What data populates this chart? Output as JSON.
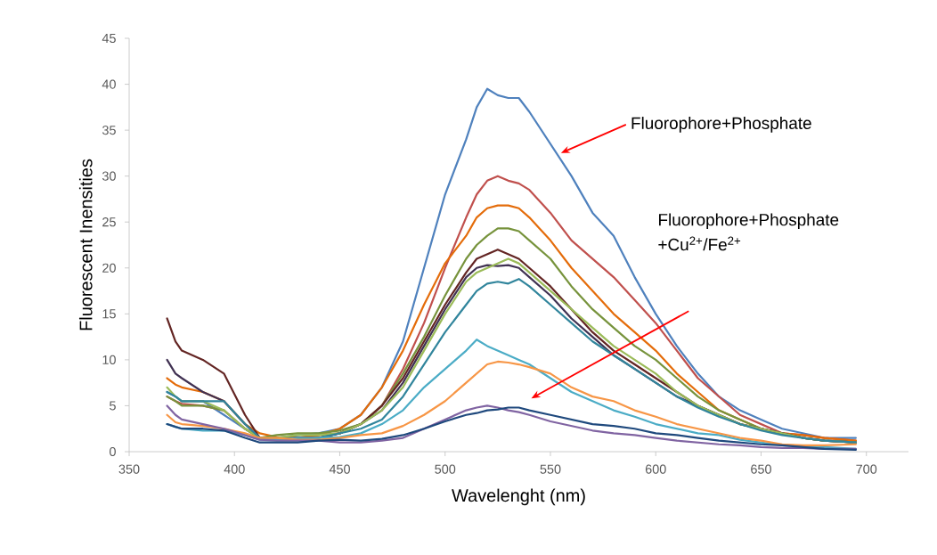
{
  "chart_data": {
    "type": "line",
    "xlabel": "Wavelenght (nm)",
    "ylabel": "Fluorescent Inensities",
    "xlim": [
      350,
      720
    ],
    "xticks": [
      350,
      400,
      450,
      500,
      550,
      600,
      650,
      700
    ],
    "ylim": [
      0,
      45
    ],
    "yticks": [
      0,
      5,
      10,
      15,
      20,
      25,
      30,
      35,
      40,
      45
    ],
    "grid": false,
    "marker": "none",
    "line_style": "solid",
    "x": [
      368,
      372,
      375,
      385,
      395,
      405,
      412,
      420,
      430,
      440,
      450,
      460,
      470,
      480,
      490,
      500,
      510,
      515,
      520,
      525,
      530,
      535,
      540,
      550,
      560,
      570,
      580,
      590,
      600,
      610,
      620,
      630,
      640,
      650,
      660,
      670,
      680,
      695
    ],
    "series": [
      {
        "color": "#4f81bd",
        "values": [
          6.5,
          6,
          5.5,
          5.5,
          4,
          2.5,
          1.5,
          1.5,
          1.8,
          2,
          2.5,
          4,
          7,
          12,
          20,
          28,
          34,
          37.5,
          39.5,
          38.8,
          38.5,
          38.5,
          37,
          33.5,
          30,
          26,
          23.5,
          19,
          15,
          11.5,
          8.5,
          6,
          4.5,
          3.5,
          2.5,
          2,
          1.5,
          1.5
        ]
      },
      {
        "color": "#c0504d",
        "values": [
          6,
          5.5,
          5.2,
          5,
          4.5,
          2.5,
          1.5,
          1.3,
          1.5,
          1.8,
          2,
          3,
          5,
          9,
          14,
          20,
          25.5,
          28,
          29.5,
          30,
          29.5,
          29.2,
          28.5,
          26,
          23,
          21,
          19,
          16.5,
          14,
          11,
          8,
          6,
          4,
          3,
          2,
          1.8,
          1.5,
          1.2
        ]
      },
      {
        "color": "#e46c0a",
        "values": [
          8,
          7.3,
          7,
          6.5,
          5.5,
          3,
          2,
          1.6,
          1.5,
          1.8,
          2.5,
          4,
          7,
          11,
          16,
          20.5,
          23.5,
          25.5,
          26.5,
          26.8,
          26.8,
          26.5,
          25.5,
          23,
          20,
          17.5,
          15,
          13,
          11,
          8.5,
          6.5,
          4.5,
          3.5,
          2.5,
          2,
          1.8,
          1.5,
          1.2
        ]
      },
      {
        "color": "#77933c",
        "values": [
          6,
          5.5,
          5,
          5,
          4.5,
          2.5,
          1.5,
          1.8,
          2,
          2,
          2.3,
          3,
          5,
          8.5,
          12.5,
          17,
          21,
          22.5,
          23.5,
          24.3,
          24.3,
          24,
          23,
          21,
          18,
          15.5,
          13.5,
          11.5,
          10,
          8,
          6,
          4.5,
          3.5,
          2.5,
          2,
          1.5,
          1.2,
          1
        ]
      },
      {
        "color": "#632523",
        "values": [
          14.5,
          12,
          11,
          10,
          8.5,
          4,
          1.5,
          1.5,
          1.5,
          1.5,
          2,
          3,
          5,
          8,
          12,
          16,
          19.5,
          21,
          21.5,
          22,
          21.5,
          21,
          20,
          18,
          15.5,
          13,
          11,
          9.5,
          8,
          6.5,
          5,
          4,
          3,
          2.5,
          2,
          1.5,
          1.2,
          1
        ]
      },
      {
        "color": "#403152",
        "values": [
          10,
          8.5,
          8,
          6.5,
          5.5,
          3,
          1.5,
          1.3,
          1.5,
          1.5,
          2,
          3,
          4.5,
          7.5,
          11.5,
          15.5,
          19,
          20,
          20.3,
          20.2,
          20.3,
          20,
          19,
          17,
          14.5,
          12.5,
          10.5,
          9,
          7.5,
          6,
          5,
          4,
          3,
          2.5,
          2,
          1.5,
          1.2,
          1
        ]
      },
      {
        "color": "#9bbb59",
        "values": [
          7,
          6,
          5.5,
          5.5,
          4.5,
          2.5,
          1.5,
          1.5,
          1.8,
          1.8,
          2,
          3,
          4.5,
          7,
          11,
          15,
          18.5,
          19.5,
          20,
          20.5,
          21,
          20.5,
          19.5,
          17.5,
          15.5,
          13.5,
          11.5,
          10,
          8.5,
          6.5,
          5,
          4,
          3,
          2.5,
          2,
          1.5,
          1.2,
          1
        ]
      },
      {
        "color": "#31859c",
        "values": [
          6.5,
          6,
          5.5,
          5.5,
          5.5,
          3,
          1.5,
          1.3,
          1.3,
          1.5,
          2,
          2.5,
          3.5,
          6,
          9.5,
          13,
          16,
          17.5,
          18.3,
          18.5,
          18.3,
          18.8,
          18,
          16,
          14,
          12,
          10.5,
          9,
          7.5,
          6,
          4.8,
          3.8,
          3,
          2.3,
          1.8,
          1.5,
          1.2,
          1
        ]
      },
      {
        "color": "#4bacc6",
        "values": [
          3,
          2.7,
          2.5,
          2.3,
          2.3,
          1.8,
          1.3,
          1.3,
          1.5,
          1.5,
          1.6,
          2,
          3,
          4.5,
          7,
          9,
          11,
          12.2,
          11.5,
          11,
          10.5,
          10,
          9.5,
          8,
          6.5,
          5.5,
          4.5,
          3.8,
          3,
          2.5,
          2,
          1.8,
          1.3,
          1,
          0.7,
          0.6,
          0.5,
          0.3
        ]
      },
      {
        "color": "#f79646",
        "values": [
          4,
          3.2,
          3,
          2.8,
          2.5,
          2,
          1.5,
          1.5,
          1.3,
          1.3,
          1.5,
          1.8,
          2,
          2.8,
          4,
          5.5,
          7.5,
          8.5,
          9.5,
          9.8,
          9.7,
          9.5,
          9.2,
          8.5,
          7,
          6,
          5.5,
          4.5,
          3.8,
          3,
          2.5,
          2,
          1.5,
          1.2,
          0.8,
          0.7,
          0.7,
          0.8
        ]
      },
      {
        "color": "#8064a2",
        "values": [
          5,
          4,
          3.5,
          3,
          2.5,
          1.8,
          1.3,
          1.2,
          1.2,
          1.2,
          1,
          1,
          1.2,
          1.5,
          2.5,
          3.5,
          4.5,
          4.8,
          5,
          4.8,
          4.5,
          4.3,
          4,
          3.3,
          2.8,
          2.3,
          2,
          1.8,
          1.5,
          1.2,
          1,
          0.8,
          0.7,
          0.5,
          0.4,
          0.4,
          0.3,
          0.3
        ]
      },
      {
        "color": "#1f497d",
        "values": [
          3,
          2.7,
          2.5,
          2.5,
          2.3,
          1.5,
          1,
          1,
          1,
          1.2,
          1.3,
          1.2,
          1.4,
          1.8,
          2.5,
          3.3,
          4,
          4.2,
          4.5,
          4.6,
          4.8,
          4.8,
          4.5,
          4,
          3.5,
          3,
          2.8,
          2.5,
          2,
          1.8,
          1.5,
          1.2,
          1,
          0.8,
          0.7,
          0.5,
          0.3,
          0.2
        ]
      }
    ],
    "annotations": [
      {
        "text": "Fluorophore+Phosphate",
        "x": 555,
        "y": 32.5
      },
      "Fluorophore+Phosphate +Cu$^{2+}$/Fe$^{2+}$"
    ]
  }
}
